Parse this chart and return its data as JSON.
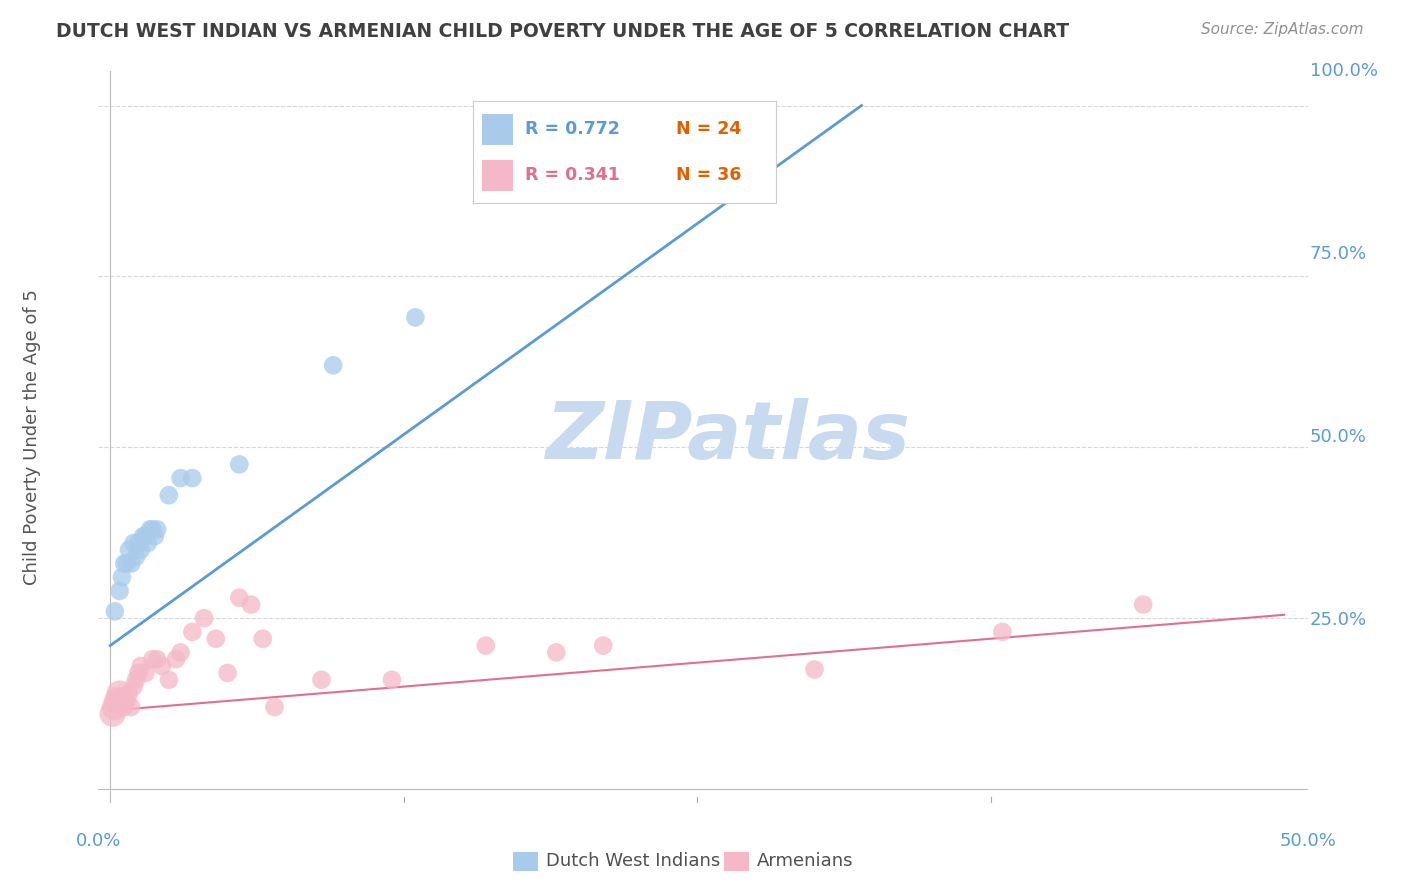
{
  "title": "DUTCH WEST INDIAN VS ARMENIAN CHILD POVERTY UNDER THE AGE OF 5 CORRELATION CHART",
  "source": "Source: ZipAtlas.com",
  "ylabel": "Child Poverty Under the Age of 5",
  "ytick_labels": [
    "100.0%",
    "75.0%",
    "50.0%",
    "25.0%"
  ],
  "ytick_values": [
    1.0,
    0.75,
    0.5,
    0.25
  ],
  "xtick_labels": [
    "0.0%",
    "50.0%"
  ],
  "xtick_values": [
    0.0,
    0.5
  ],
  "xlim": [
    -0.005,
    0.51
  ],
  "ylim": [
    -0.02,
    1.05
  ],
  "legend_r1": "R = 0.772",
  "legend_n1": "N = 24",
  "legend_r2": "R = 0.341",
  "legend_n2": "N = 36",
  "color_blue": "#a8caeb",
  "color_blue_line": "#5b9bd5",
  "color_pink": "#f4b8c8",
  "color_pink_line": "#e07090",
  "color_axis_labels": "#5b9bd5",
  "color_title": "#404040",
  "color_source": "#909090",
  "color_grid": "#d8d8d8",
  "blue_points_x": [
    0.002,
    0.004,
    0.005,
    0.006,
    0.007,
    0.008,
    0.009,
    0.01,
    0.011,
    0.012,
    0.013,
    0.014,
    0.015,
    0.016,
    0.017,
    0.018,
    0.019,
    0.02,
    0.025,
    0.03,
    0.035,
    0.055,
    0.095,
    0.13
  ],
  "blue_points_y": [
    0.26,
    0.29,
    0.31,
    0.33,
    0.33,
    0.35,
    0.33,
    0.36,
    0.34,
    0.36,
    0.35,
    0.37,
    0.37,
    0.36,
    0.38,
    0.38,
    0.37,
    0.38,
    0.43,
    0.455,
    0.455,
    0.475,
    0.62,
    0.69
  ],
  "pink_points_x": [
    0.001,
    0.002,
    0.003,
    0.004,
    0.005,
    0.006,
    0.007,
    0.008,
    0.009,
    0.01,
    0.011,
    0.012,
    0.013,
    0.015,
    0.018,
    0.02,
    0.022,
    0.025,
    0.028,
    0.03,
    0.035,
    0.04,
    0.045,
    0.05,
    0.055,
    0.06,
    0.065,
    0.07,
    0.09,
    0.12,
    0.16,
    0.19,
    0.21,
    0.3,
    0.38,
    0.44
  ],
  "pink_points_y": [
    0.11,
    0.12,
    0.13,
    0.14,
    0.13,
    0.12,
    0.13,
    0.14,
    0.12,
    0.15,
    0.16,
    0.17,
    0.18,
    0.17,
    0.19,
    0.19,
    0.18,
    0.16,
    0.19,
    0.2,
    0.23,
    0.25,
    0.22,
    0.17,
    0.28,
    0.27,
    0.22,
    0.12,
    0.16,
    0.16,
    0.21,
    0.2,
    0.21,
    0.175,
    0.23,
    0.27
  ],
  "blue_line_x0": 0.0,
  "blue_line_y0": 0.21,
  "blue_line_x1": 0.32,
  "blue_line_y1": 1.0,
  "pink_line_x0": 0.0,
  "pink_line_y0": 0.115,
  "pink_line_x1": 0.5,
  "pink_line_y1": 0.255,
  "watermark": "ZIPatlas",
  "watermark_color": "#c8daf0",
  "background_color": "#ffffff"
}
